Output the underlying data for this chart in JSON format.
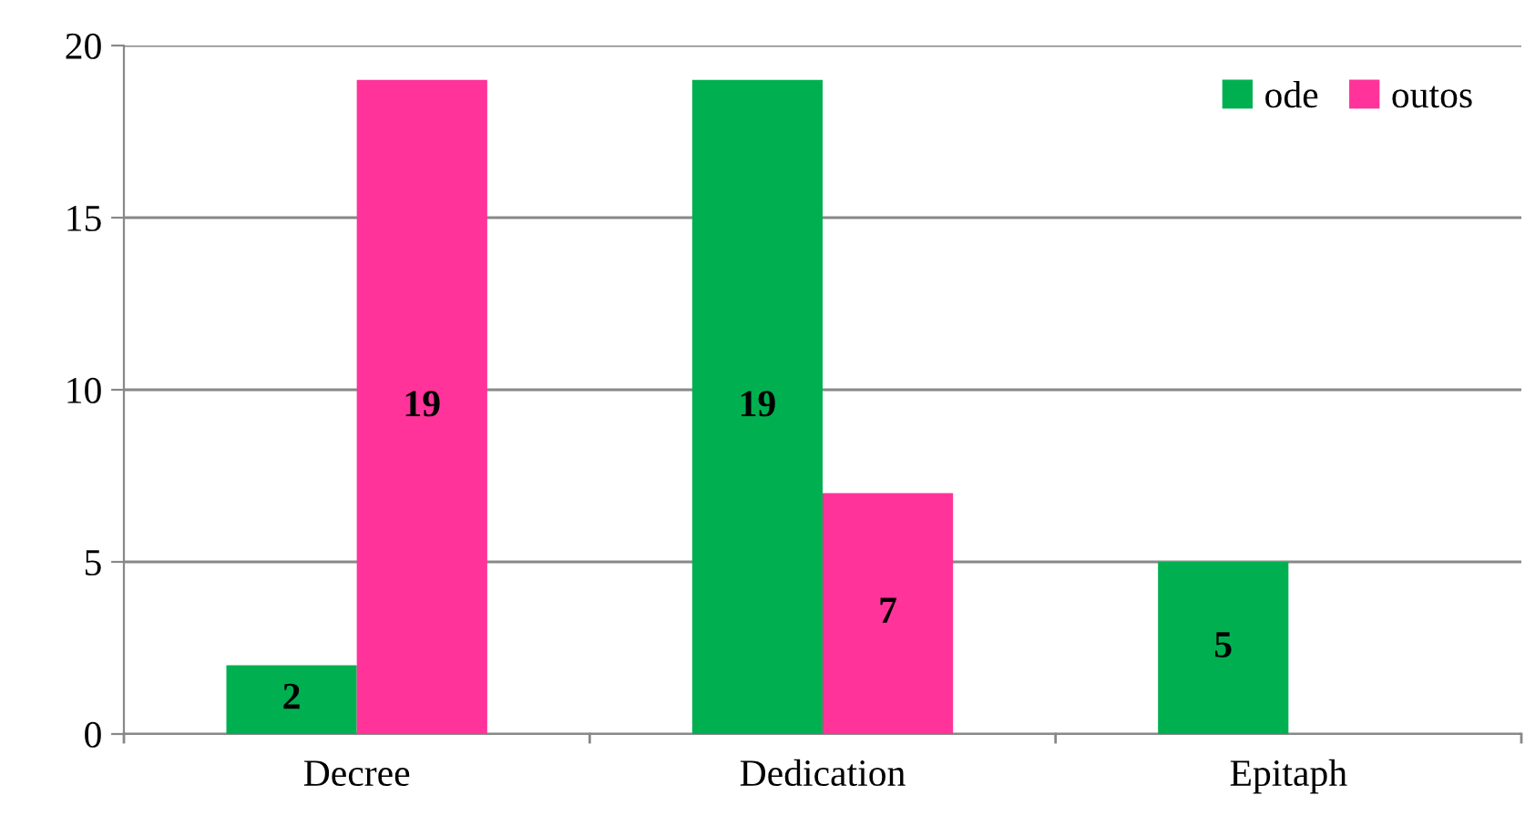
{
  "chart_data": {
    "type": "bar",
    "categories": [
      "Decree",
      "Dedication",
      "Epitaph"
    ],
    "series": [
      {
        "name": "ode",
        "color": "#00b050",
        "values": [
          2,
          19,
          5
        ]
      },
      {
        "name": "outos",
        "color": "#ff3399",
        "values": [
          19,
          7,
          null
        ]
      }
    ],
    "ylim": [
      0,
      20
    ],
    "yticks": [
      0,
      5,
      10,
      15,
      20
    ],
    "grid": "y",
    "legend": "top right",
    "data_labels": true
  }
}
